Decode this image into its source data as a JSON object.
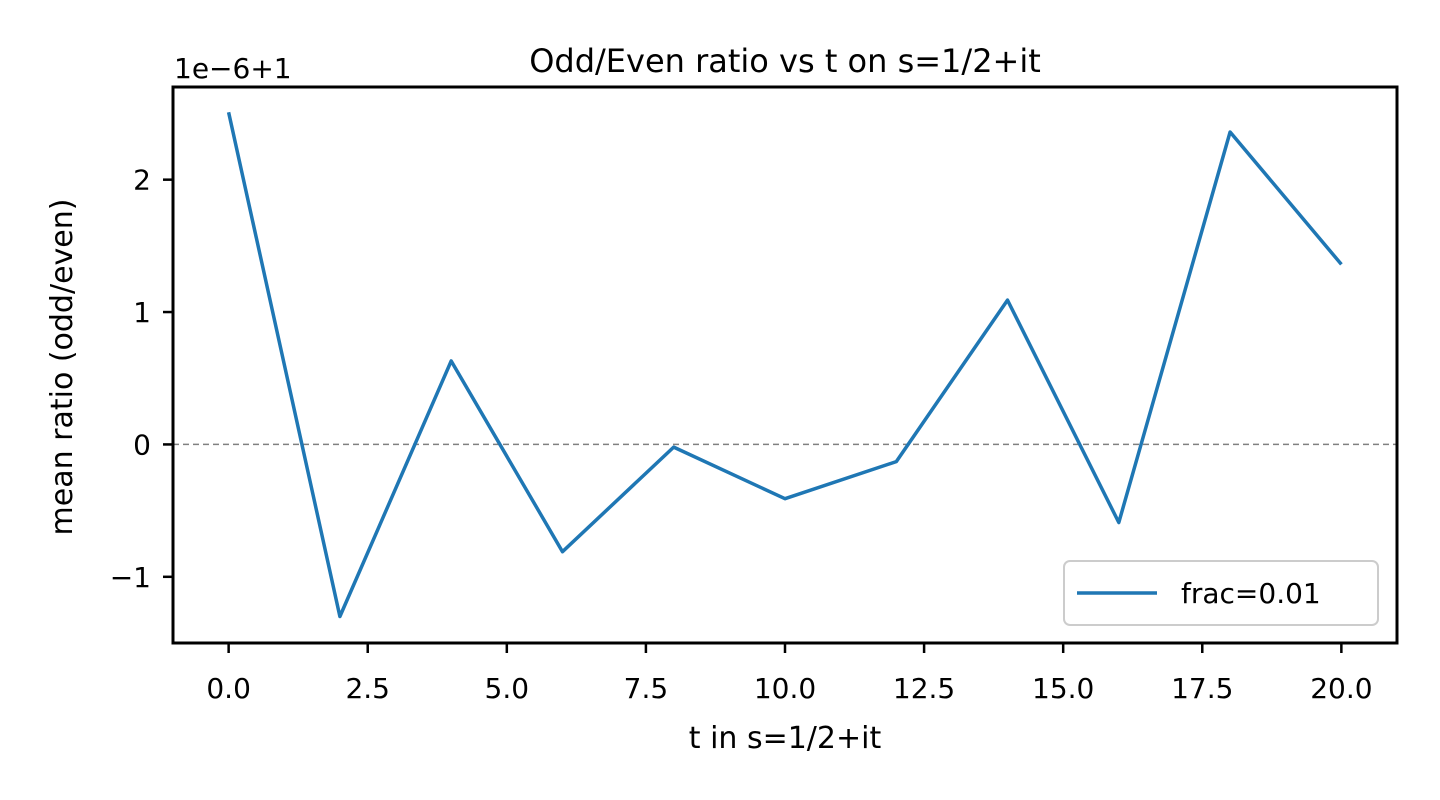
{
  "chart_data": {
    "type": "line",
    "title": "Odd/Even ratio vs t on s=1/2+it",
    "xlabel": "t in s=1/2+it",
    "ylabel": "mean ratio (odd/even)",
    "offset_text": "1e−6+1",
    "x": [
      0,
      2,
      4,
      6,
      8,
      10,
      12,
      14,
      16,
      18,
      20
    ],
    "series": [
      {
        "name": "frac=0.01",
        "color": "#1f77b4",
        "values": [
          2.51,
          -1.3,
          0.63,
          -0.81,
          -0.02,
          -0.41,
          -0.13,
          1.09,
          -0.59,
          2.36,
          1.36
        ]
      }
    ],
    "xlim": [
      -1.0,
      21.0
    ],
    "ylim": [
      -1.5,
      2.7
    ],
    "xticks": [
      0,
      2.5,
      5,
      7.5,
      10,
      12.5,
      15,
      17.5,
      20
    ],
    "xtick_labels": [
      "0.0",
      "2.5",
      "5.0",
      "7.5",
      "10.0",
      "12.5",
      "15.0",
      "17.5",
      "20.0"
    ],
    "yticks": [
      -1,
      0,
      1,
      2
    ],
    "ytick_labels": [
      "−1",
      "0",
      "1",
      "2"
    ],
    "reference_line": {
      "y": 0,
      "color": "#808080",
      "style": "dashed"
    },
    "legend_position": "lower-right",
    "grid": false
  }
}
